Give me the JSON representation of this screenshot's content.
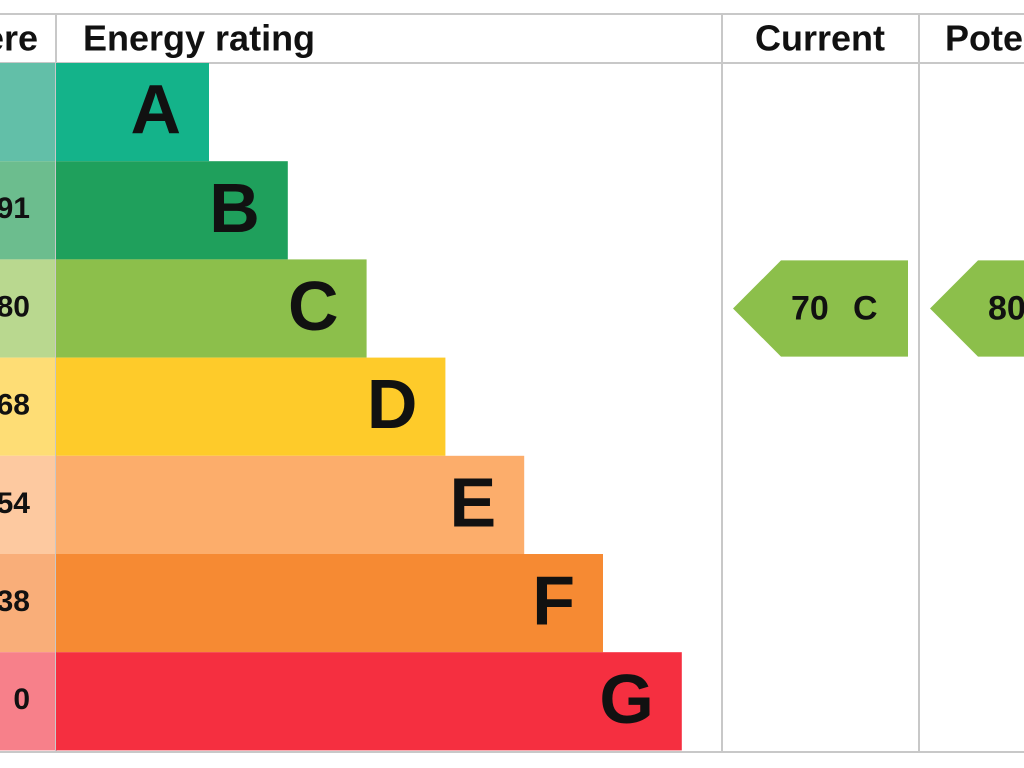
{
  "header": {
    "score": "ere",
    "rating": "Energy rating",
    "current": "Current",
    "potential": "Potential"
  },
  "bands": [
    {
      "letter": "A",
      "score": null,
      "color": "#14b38a",
      "light": "#62bfa8"
    },
    {
      "letter": "B",
      "score": "91",
      "color": "#1fa05c",
      "light": "#6cbd8e"
    },
    {
      "letter": "C",
      "score": "80",
      "color": "#8cbf4b",
      "light": "#b9d88f"
    },
    {
      "letter": "D",
      "score": "68",
      "color": "#fecb2a",
      "light": "#fedd75"
    },
    {
      "letter": "E",
      "score": "54",
      "color": "#fcad6b",
      "light": "#fdc9a0"
    },
    {
      "letter": "F",
      "score": "38",
      "color": "#f68a33",
      "light": "#f9ae79"
    },
    {
      "letter": "G",
      "score": "0",
      "color": "#f52f40",
      "light": "#f7808a"
    }
  ],
  "current": {
    "score": "70",
    "band": "C"
  },
  "potential": {
    "score": "80",
    "band": "C"
  }
}
